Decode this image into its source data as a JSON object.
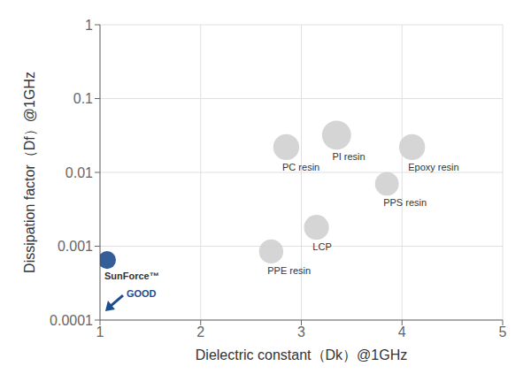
{
  "chart_data": {
    "type": "bubble",
    "x_label": "Dielectric constant（Dk）@1GHz",
    "y_label": "Dissipation factor（Df）@1GHz",
    "labels": [
      "SunForce™",
      "PC resin",
      "PI resin",
      "Epoxy resin",
      "PPS resin",
      "LCP",
      "PPE resin"
    ],
    "x": [
      1.07,
      2.85,
      3.35,
      4.1,
      3.85,
      3.15,
      2.7
    ],
    "values": [
      0.00065,
      0.022,
      0.032,
      0.022,
      0.007,
      0.0018,
      0.00085
    ],
    "sizes": [
      280,
      600,
      750,
      600,
      500,
      550,
      520
    ],
    "colors": [
      "#1e4d8c",
      "#d0d0d0",
      "#d0d0d0",
      "#d0d0d0",
      "#d0d0d0",
      "#d0d0d0",
      "#d0d0d0"
    ],
    "xlim": [
      1,
      5
    ],
    "ylim": [
      0.0001,
      1
    ],
    "xticks": [
      1,
      2,
      3,
      4,
      5
    ],
    "yticks": [
      0.0001,
      0.001,
      0.01,
      0.1,
      1
    ],
    "log": "y",
    "grid": true,
    "annotations": [
      {
        "text": "GOOD",
        "color": "#1e4d8c"
      }
    ]
  }
}
